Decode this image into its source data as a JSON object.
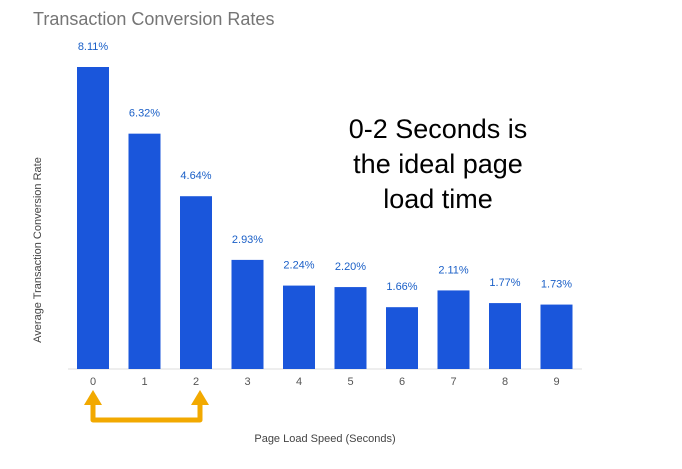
{
  "chart_data": {
    "type": "bar",
    "title": "Transaction Conversion Rates",
    "xlabel": "Page Load Speed (Seconds)",
    "ylabel": "Average Transaction Conversion Rate",
    "categories": [
      "0",
      "1",
      "2",
      "3",
      "4",
      "5",
      "6",
      "7",
      "8",
      "9"
    ],
    "values": [
      8.11,
      6.32,
      4.64,
      2.93,
      2.24,
      2.2,
      1.66,
      2.11,
      1.77,
      1.73
    ],
    "data_labels": [
      "8.11%",
      "6.32%",
      "4.64%",
      "2.93%",
      "2.24%",
      "2.20%",
      "1.66%",
      "2.11%",
      "1.77%",
      "1.73%"
    ],
    "ylim": [
      0,
      8.11
    ],
    "grid": false,
    "annotations": [
      "0-2 Seconds is",
      "the ideal page",
      "load time"
    ],
    "colors": {
      "bar": "#1a56db",
      "label": "#1a5fc7",
      "bracket": "#f2a900"
    }
  }
}
